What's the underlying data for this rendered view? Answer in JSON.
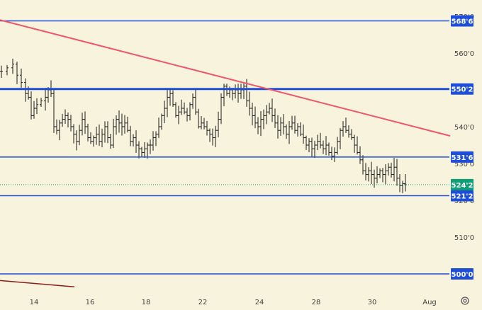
{
  "colors": {
    "background": "#f8f3dc",
    "level_line": "#1e4ed8",
    "trend_line": "#f0556b",
    "bar": "#1a1a1a",
    "last_price": "#0f9d76",
    "last_price_dotted": "#17a27e",
    "tick_text": "#444444",
    "old_trend": "#8a1c1c"
  },
  "icons": {
    "settings": "gear-icon"
  },
  "chart_data": {
    "type": "ohlc",
    "title": "",
    "xlabel": "",
    "ylabel": "",
    "ylim": [
      495,
      571
    ],
    "y_ticks": [
      "570'0",
      "560'0",
      "540'0",
      "530'0",
      "520'0",
      "510'0"
    ],
    "x_ticks": [
      "14",
      "16",
      "18",
      "22",
      "24",
      "28",
      "30",
      "Aug"
    ],
    "horizontal_levels": [
      {
        "label": "568'6",
        "value": 568.75
      },
      {
        "label": "550'2",
        "value": 550.25
      },
      {
        "label": "531'6",
        "value": 531.75
      },
      {
        "label": "521'2",
        "value": 521.25
      },
      {
        "label": "500'0",
        "value": 500.0
      }
    ],
    "last_price": {
      "label": "524'2",
      "value": 524.25
    },
    "trend_line": {
      "from": [
        0,
        569
      ],
      "to": [
        635,
        537.5
      ]
    },
    "old_trend_line": {
      "from": [
        0,
        498.2
      ],
      "to": [
        105,
        496.5
      ]
    },
    "close_path": [
      [
        2,
        555
      ],
      [
        10,
        556
      ],
      [
        18,
        557
      ],
      [
        24,
        554
      ],
      [
        30,
        552
      ],
      [
        36,
        549
      ],
      [
        40,
        548
      ],
      [
        44,
        543
      ],
      [
        48,
        545
      ],
      [
        52,
        546
      ],
      [
        58,
        547
      ],
      [
        64,
        548
      ],
      [
        68,
        550
      ],
      [
        72,
        549
      ],
      [
        76,
        540
      ],
      [
        80,
        539
      ],
      [
        84,
        541
      ],
      [
        88,
        542
      ],
      [
        92,
        543
      ],
      [
        96,
        542
      ],
      [
        100,
        540
      ],
      [
        104,
        538
      ],
      [
        108,
        536
      ],
      [
        112,
        539
      ],
      [
        116,
        542
      ],
      [
        120,
        540
      ],
      [
        124,
        537
      ],
      [
        128,
        536
      ],
      [
        132,
        537
      ],
      [
        136,
        538
      ],
      [
        140,
        536
      ],
      [
        144,
        538
      ],
      [
        148,
        540
      ],
      [
        152,
        537
      ],
      [
        156,
        535
      ],
      [
        160,
        540
      ],
      [
        164,
        542
      ],
      [
        168,
        541
      ],
      [
        172,
        540
      ],
      [
        176,
        541
      ],
      [
        180,
        539
      ],
      [
        184,
        536
      ],
      [
        188,
        537
      ],
      [
        192,
        535
      ],
      [
        196,
        534
      ],
      [
        200,
        533
      ],
      [
        204,
        534
      ],
      [
        208,
        535
      ],
      [
        212,
        535
      ],
      [
        216,
        537
      ],
      [
        220,
        538
      ],
      [
        224,
        540
      ],
      [
        228,
        543
      ],
      [
        232,
        545
      ],
      [
        236,
        548
      ],
      [
        240,
        549
      ],
      [
        244,
        546
      ],
      [
        248,
        543
      ],
      [
        252,
        544
      ],
      [
        256,
        545
      ],
      [
        260,
        544
      ],
      [
        264,
        543
      ],
      [
        268,
        546
      ],
      [
        272,
        548
      ],
      [
        276,
        544
      ],
      [
        280,
        540
      ],
      [
        284,
        541
      ],
      [
        288,
        540
      ],
      [
        292,
        539
      ],
      [
        296,
        538
      ],
      [
        300,
        537
      ],
      [
        304,
        539
      ],
      [
        308,
        542
      ],
      [
        312,
        548
      ],
      [
        316,
        551
      ],
      [
        320,
        549
      ],
      [
        324,
        550
      ],
      [
        328,
        549
      ],
      [
        332,
        550
      ],
      [
        336,
        549
      ],
      [
        340,
        550
      ],
      [
        344,
        551
      ],
      [
        348,
        547
      ],
      [
        352,
        545
      ],
      [
        356,
        543
      ],
      [
        360,
        541
      ],
      [
        364,
        540
      ],
      [
        368,
        542
      ],
      [
        372,
        543
      ],
      [
        376,
        544
      ],
      [
        380,
        545
      ],
      [
        384,
        543
      ],
      [
        388,
        541
      ],
      [
        392,
        539
      ],
      [
        396,
        541
      ],
      [
        400,
        540
      ],
      [
        404,
        538
      ],
      [
        408,
        540
      ],
      [
        412,
        541
      ],
      [
        416,
        539
      ],
      [
        420,
        540
      ],
      [
        424,
        538
      ],
      [
        428,
        537
      ],
      [
        432,
        535
      ],
      [
        436,
        536
      ],
      [
        440,
        534
      ],
      [
        444,
        535
      ],
      [
        448,
        536
      ],
      [
        452,
        535
      ],
      [
        456,
        534
      ],
      [
        460,
        535
      ],
      [
        464,
        533
      ],
      [
        468,
        532
      ],
      [
        472,
        533
      ],
      [
        476,
        536
      ],
      [
        480,
        539
      ],
      [
        484,
        540
      ],
      [
        488,
        539
      ],
      [
        492,
        538
      ],
      [
        496,
        537
      ],
      [
        500,
        535
      ],
      [
        504,
        533
      ],
      [
        508,
        531
      ],
      [
        512,
        528
      ],
      [
        516,
        527
      ],
      [
        520,
        528
      ],
      [
        524,
        527
      ],
      [
        528,
        526
      ],
      [
        532,
        527
      ],
      [
        536,
        528
      ],
      [
        540,
        527
      ],
      [
        544,
        528
      ],
      [
        548,
        529
      ],
      [
        552,
        527
      ],
      [
        556,
        529
      ],
      [
        560,
        526
      ],
      [
        564,
        524
      ],
      [
        568,
        524.5
      ],
      [
        572,
        524.25
      ]
    ]
  }
}
